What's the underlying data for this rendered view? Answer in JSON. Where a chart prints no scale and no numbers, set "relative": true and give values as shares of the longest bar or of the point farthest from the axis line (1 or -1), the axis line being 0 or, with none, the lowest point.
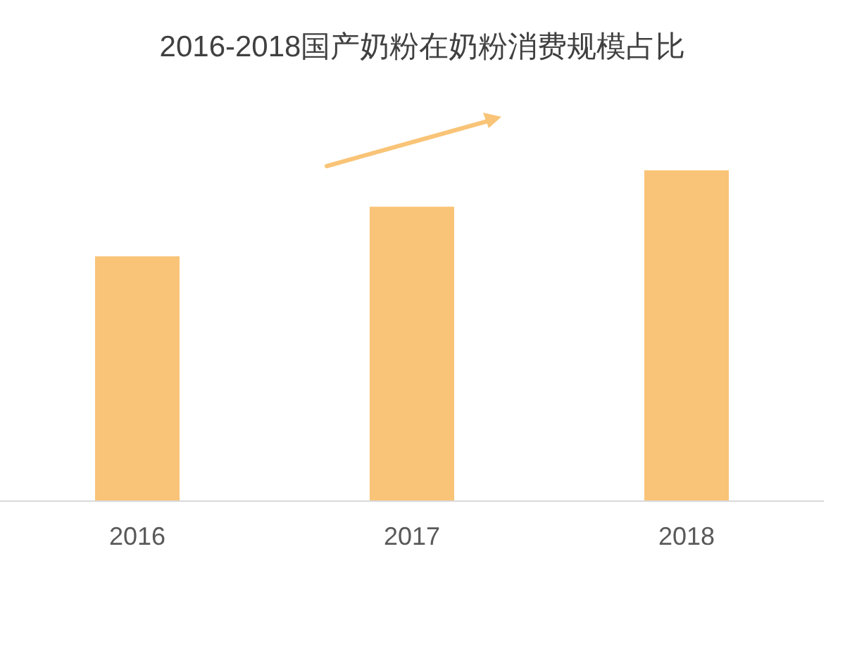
{
  "chart_data": {
    "type": "bar",
    "title": "2016-2018国产奶粉在奶粉消费规模占比",
    "categories": [
      "2016",
      "2017",
      "2018"
    ],
    "values": [
      0.74,
      0.89,
      1
    ],
    "color": "#f9c477",
    "relative": true
  }
}
